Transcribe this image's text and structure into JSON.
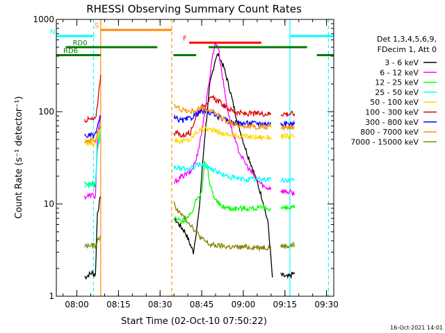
{
  "chart_data": {
    "type": "line",
    "title": "RHESSI Observing Summary Count Rates",
    "xlabel": "Start Time (02-Oct-10 07:50:22)",
    "ylabel": "Count Rate (s⁻¹ detector⁻¹)",
    "yscale": "log",
    "ylim": [
      1,
      1000
    ],
    "xlim_minutes": [
      -7.4,
      92.6
    ],
    "x_ticks": [
      {
        "label": "08:00",
        "minute": 0
      },
      {
        "label": "08:15",
        "minute": 15
      },
      {
        "label": "08:30",
        "minute": 30
      },
      {
        "label": "08:45",
        "minute": 45
      },
      {
        "label": "09:00",
        "minute": 60
      },
      {
        "label": "09:15",
        "minute": 75
      },
      {
        "label": "09:30",
        "minute": 90
      }
    ],
    "y_ticks": [
      {
        "label": "1",
        "value": 1
      },
      {
        "label": "10",
        "value": 10
      },
      {
        "label": "100",
        "value": 100
      },
      {
        "label": "1000",
        "value": 1000
      }
    ],
    "legend_header": [
      "Det 1,3,4,5,6,9,",
      "FDecim 1, Att 0"
    ],
    "series": [
      {
        "name": "3 - 6 keV",
        "color": "#000000",
        "segments": [
          [
            [
              2.8,
              1.6
            ],
            [
              5.5,
              1.8
            ],
            [
              6.7,
              1.7
            ],
            [
              7.4,
              8
            ],
            [
              8.6,
              12
            ]
          ],
          [
            [
              35,
              7
            ],
            [
              39,
              5
            ],
            [
              42,
              3
            ],
            [
              44,
              8
            ],
            [
              46,
              50
            ],
            [
              48,
              200
            ],
            [
              50,
              380
            ],
            [
              51,
              420
            ],
            [
              53,
              300
            ],
            [
              55,
              180
            ],
            [
              57,
              100
            ],
            [
              59,
              60
            ],
            [
              61,
              38
            ],
            [
              63,
              26
            ],
            [
              65,
              17
            ],
            [
              67,
              11
            ],
            [
              69,
              6
            ],
            [
              70.5,
              1.6
            ]
          ],
          [
            [
              73.5,
              1.7
            ],
            [
              76,
              1.6
            ],
            [
              78.5,
              1.8
            ]
          ]
        ]
      },
      {
        "name": "6 - 12 keV",
        "color": "#ff00ff",
        "segments": [
          [
            [
              2.8,
              12
            ],
            [
              5.5,
              12.5
            ],
            [
              6.7,
              12
            ],
            [
              7.4,
              50
            ],
            [
              8.6,
              90
            ]
          ],
          [
            [
              35,
              17
            ],
            [
              38,
              20
            ],
            [
              41,
              22
            ],
            [
              43,
              30
            ],
            [
              45,
              60
            ],
            [
              47,
              150
            ],
            [
              49,
              420
            ],
            [
              50,
              560
            ],
            [
              51,
              500
            ],
            [
              52,
              300
            ],
            [
              54,
              120
            ],
            [
              56,
              60
            ],
            [
              58,
              40
            ],
            [
              60,
              30
            ],
            [
              62,
              24
            ],
            [
              64,
              20
            ],
            [
              66,
              17
            ],
            [
              68,
              15
            ],
            [
              70,
              15
            ]
          ],
          [
            [
              73.5,
              14
            ],
            [
              76,
              13.5
            ],
            [
              78.5,
              13
            ]
          ]
        ]
      },
      {
        "name": "12 - 25 keV",
        "color": "#00ff00",
        "segments": [
          [
            [
              2.8,
              16.5
            ],
            [
              5.5,
              16.5
            ],
            [
              6.7,
              16
            ],
            [
              7.4,
              40
            ],
            [
              8.6,
              70
            ]
          ],
          [
            [
              35,
              7
            ],
            [
              38,
              6.5
            ],
            [
              41,
              7.5
            ],
            [
              43,
              11
            ],
            [
              45,
              14
            ],
            [
              46,
              28
            ],
            [
              47,
              25
            ],
            [
              48,
              16
            ],
            [
              50,
              11
            ],
            [
              52,
              9.5
            ],
            [
              55,
              9
            ],
            [
              60,
              9
            ],
            [
              65,
              9
            ],
            [
              70,
              9
            ]
          ],
          [
            [
              73.5,
              9
            ],
            [
              76,
              9
            ],
            [
              78.5,
              9
            ]
          ]
        ]
      },
      {
        "name": "25 - 50 keV",
        "color": "#00ffff",
        "segments": [
          [
            [
              2.8,
              16
            ],
            [
              5.5,
              16.5
            ],
            [
              6.7,
              16
            ],
            [
              7.4,
              35
            ],
            [
              8.6,
              60
            ]
          ],
          [
            [
              35,
              25
            ],
            [
              38,
              24
            ],
            [
              41,
              24
            ],
            [
              43,
              26
            ],
            [
              45,
              27
            ],
            [
              47,
              25
            ],
            [
              49,
              24
            ],
            [
              51,
              22
            ],
            [
              54,
              20
            ],
            [
              57,
              19
            ],
            [
              60,
              18.5
            ],
            [
              65,
              18.5
            ],
            [
              70,
              18.5
            ]
          ],
          [
            [
              73.5,
              18
            ],
            [
              76,
              18
            ],
            [
              78.5,
              18
            ]
          ]
        ]
      },
      {
        "name": "50 - 100 keV",
        "color": "#ffd700",
        "segments": [
          [
            [
              2.8,
              45
            ],
            [
              5.5,
              45
            ],
            [
              6.7,
              45
            ],
            [
              7.4,
              55
            ],
            [
              8.6,
              65
            ]
          ],
          [
            [
              35,
              50
            ],
            [
              38,
              48
            ],
            [
              41,
              50
            ],
            [
              43,
              60
            ],
            [
              45,
              65
            ],
            [
              47,
              65
            ],
            [
              49,
              63
            ],
            [
              51,
              60
            ],
            [
              54,
              57
            ],
            [
              57,
              55
            ],
            [
              60,
              54
            ],
            [
              65,
              53
            ],
            [
              70,
              53
            ]
          ],
          [
            [
              73.5,
              54
            ],
            [
              76,
              54
            ],
            [
              78.5,
              54
            ]
          ]
        ]
      },
      {
        "name": "100 - 300 keV",
        "color": "#dd0000",
        "segments": [
          [
            [
              2.8,
              82
            ],
            [
              5.5,
              82
            ],
            [
              6.7,
              82
            ],
            [
              7.4,
              120
            ],
            [
              8.6,
              250
            ]
          ],
          [
            [
              35,
              60
            ],
            [
              38,
              55
            ],
            [
              41,
              60
            ],
            [
              43,
              90
            ],
            [
              45,
              110
            ],
            [
              47,
              130
            ],
            [
              49,
              140
            ],
            [
              51,
              130
            ],
            [
              54,
              110
            ],
            [
              57,
              100
            ],
            [
              60,
              95
            ],
            [
              65,
              95
            ],
            [
              70,
              95
            ]
          ],
          [
            [
              73.5,
              95
            ],
            [
              76,
              95
            ],
            [
              78.5,
              95
            ]
          ]
        ]
      },
      {
        "name": "300 - 800 keV",
        "color": "#0000ff",
        "segments": [
          [
            [
              2.8,
              55
            ],
            [
              5.5,
              55
            ],
            [
              6.7,
              56
            ],
            [
              7.4,
              70
            ],
            [
              8.6,
              90
            ]
          ],
          [
            [
              35,
              85
            ],
            [
              38,
              80
            ],
            [
              41,
              85
            ],
            [
              43,
              95
            ],
            [
              45,
              100
            ],
            [
              47,
              100
            ],
            [
              49,
              95
            ],
            [
              51,
              88
            ],
            [
              54,
              80
            ],
            [
              57,
              76
            ],
            [
              60,
              75
            ],
            [
              65,
              75
            ],
            [
              70,
              74
            ]
          ],
          [
            [
              73.5,
              74
            ],
            [
              76,
              74
            ],
            [
              78.5,
              74
            ]
          ]
        ]
      },
      {
        "name": "800 - 7000 keV",
        "color": "#ff8c00",
        "segments": [
          [
            [
              2.8,
              49
            ],
            [
              5.5,
              49
            ],
            [
              6.7,
              49
            ],
            [
              7.4,
              60
            ],
            [
              8.6,
              70
            ]
          ],
          [
            [
              35,
              115
            ],
            [
              38,
              105
            ],
            [
              41,
              100
            ],
            [
              43,
              105
            ],
            [
              45,
              110
            ],
            [
              47,
              105
            ],
            [
              49,
              100
            ],
            [
              51,
              90
            ],
            [
              54,
              80
            ],
            [
              57,
              72
            ],
            [
              60,
              70
            ],
            [
              65,
              68
            ],
            [
              70,
              68
            ]
          ],
          [
            [
              73.5,
              68
            ],
            [
              76,
              68
            ],
            [
              78.5,
              68
            ]
          ]
        ]
      },
      {
        "name": "7000 - 15000 keV",
        "color": "#808000",
        "segments": [
          [
            [
              2.8,
              3.5
            ],
            [
              5.5,
              3.5
            ],
            [
              6.7,
              3.5
            ],
            [
              7.4,
              4
            ],
            [
              8.6,
              4.5
            ]
          ],
          [
            [
              35,
              10
            ],
            [
              37,
              8
            ],
            [
              39,
              7
            ],
            [
              41,
              6
            ],
            [
              43,
              5
            ],
            [
              45,
              4.2
            ],
            [
              48,
              3.6
            ],
            [
              52,
              3.5
            ],
            [
              56,
              3.4
            ],
            [
              60,
              3.4
            ],
            [
              65,
              3.4
            ],
            [
              70,
              3.4
            ]
          ],
          [
            [
              73.5,
              3.5
            ],
            [
              76,
              3.5
            ],
            [
              78.5,
              3.6
            ]
          ]
        ]
      }
    ],
    "flag_bars": [
      {
        "label": "SAA",
        "label_text": "S",
        "color": "#ff8c00",
        "y_value": 770,
        "x_start": 8.6,
        "x_end": 34.2
      },
      {
        "label": "Night",
        "label_text": "N",
        "color": "#00ffff",
        "y_value": 660,
        "x_start": -7.4,
        "x_end": 6.0
      },
      {
        "label": "Night",
        "label_text": "",
        "color": "#00ffff",
        "y_value": 660,
        "x_start": 76.8,
        "x_end": 92.6
      },
      {
        "label": "Flare",
        "label_text": "F",
        "color": "#ff0000",
        "y_value": 560,
        "x_start": 40.5,
        "x_end": 66.5
      },
      {
        "label": "RD0",
        "label_text": "RD0",
        "color": "#007700",
        "y_value": 500,
        "x_start": -4.0,
        "x_end": 29.0
      },
      {
        "label": "RD0",
        "label_text": "",
        "color": "#007700",
        "y_value": 500,
        "x_start": 47.5,
        "x_end": 83.0
      },
      {
        "label": "RD6",
        "label_text": "RD6",
        "color": "#007700",
        "y_value": 410,
        "x_start": -7.4,
        "x_end": 8.6
      },
      {
        "label": "RD6",
        "label_text": "",
        "color": "#007700",
        "y_value": 410,
        "x_start": 34.8,
        "x_end": 43.0
      },
      {
        "label": "RD6",
        "label_text": "",
        "color": "#007700",
        "y_value": 410,
        "x_start": 86.5,
        "x_end": 92.6
      }
    ],
    "vertical_markers": [
      {
        "type": "night-boundary",
        "color": "#00ffff",
        "style": "solid",
        "x": -7.4
      },
      {
        "type": "night-boundary",
        "color": "#00ffff",
        "style": "dashed",
        "x": 6.0
      },
      {
        "type": "night-boundary",
        "color": "#00ffff",
        "style": "solid",
        "x": 76.8
      },
      {
        "type": "night-boundary",
        "color": "#00ffff",
        "style": "dashed",
        "x": 90.7
      },
      {
        "type": "saa-boundary",
        "color": "#ff8c00",
        "style": "solid",
        "x": 8.6
      },
      {
        "type": "saa-boundary",
        "color": "#ff8c00",
        "style": "dashed",
        "x": 34.2
      }
    ]
  },
  "footer_timestamp": "16-Oct-2021 14:01"
}
